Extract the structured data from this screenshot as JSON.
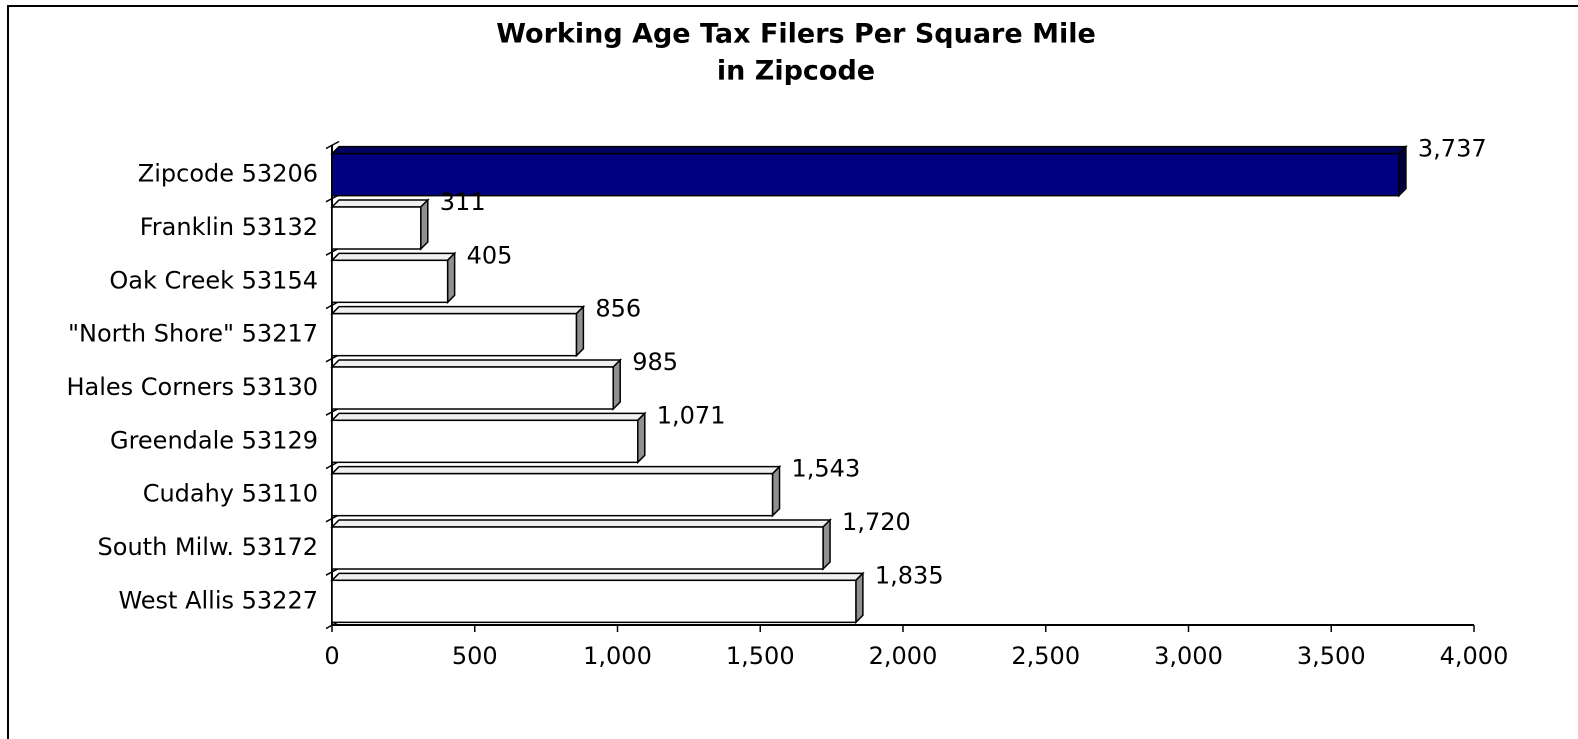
{
  "chart_data": {
    "type": "bar",
    "orientation": "horizontal",
    "title": [
      "Working Age Tax Filers Per Square Mile",
      "in Zipcode"
    ],
    "categories": [
      "Zipcode 53206",
      "Franklin 53132",
      "Oak Creek 53154",
      "\"North Shore\" 53217",
      "Hales Corners 53130",
      "Greendale 53129",
      "Cudahy 53110",
      "South Milw. 53172",
      "West Allis 53227"
    ],
    "values": [
      3737,
      311,
      405,
      856,
      985,
      1071,
      1543,
      1720,
      1835
    ],
    "value_labels": [
      "3,737",
      "311",
      "405",
      "856",
      "985",
      "1,071",
      "1,543",
      "1,720",
      "1,835"
    ],
    "colors": [
      "#000080",
      "#ffffff",
      "#ffffff",
      "#ffffff",
      "#ffffff",
      "#ffffff",
      "#ffffff",
      "#ffffff",
      "#ffffff"
    ],
    "xlim": [
      0,
      4000
    ],
    "xticks": [
      0,
      500,
      {
        "value": 1000,
        "label": "1,000"
      },
      {
        "value": 1500,
        "label": "1,500"
      },
      {
        "value": 2000,
        "label": "2,000"
      },
      {
        "value": 2500,
        "label": "2,500"
      },
      {
        "value": 3000,
        "label": "3,000"
      },
      {
        "value": 3500,
        "label": "3,500"
      },
      {
        "value": 4000,
        "label": "4,000"
      }
    ],
    "grid": false
  }
}
